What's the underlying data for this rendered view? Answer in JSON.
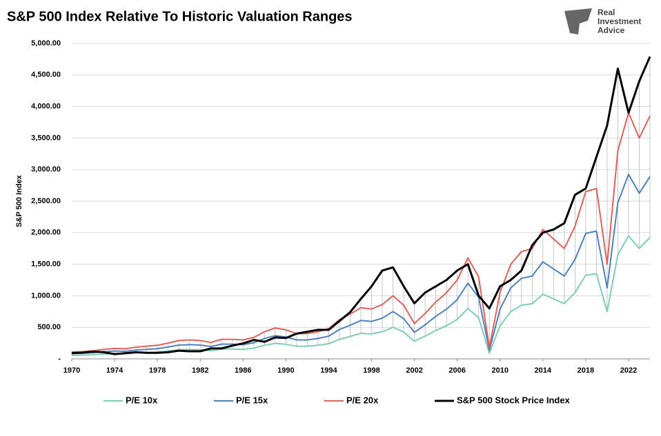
{
  "chart_data": {
    "type": "line",
    "title": "S&P 500 Index Relative To Historic Valuation Ranges",
    "y_label": "S&P 500 Index",
    "logo": [
      "Real",
      "Investment",
      "Advice"
    ],
    "x": [
      1970,
      1971,
      1972,
      1973,
      1974,
      1975,
      1976,
      1977,
      1978,
      1979,
      1980,
      1981,
      1982,
      1983,
      1984,
      1985,
      1986,
      1987,
      1988,
      1989,
      1990,
      1991,
      1992,
      1993,
      1994,
      1995,
      1996,
      1997,
      1998,
      1999,
      2000,
      2001,
      2002,
      2003,
      2004,
      2005,
      2006,
      2007,
      2008,
      2009,
      2010,
      2011,
      2012,
      2013,
      2014,
      2015,
      2016,
      2017,
      2018,
      2019,
      2020,
      2021,
      2022,
      2023,
      2024
    ],
    "series": [
      {
        "name": "P/E 10x",
        "color": "#7fcdb4",
        "width": 2,
        "values": [
          55,
          58,
          65,
          75,
          83,
          80,
          93,
          100,
          108,
          125,
          145,
          150,
          145,
          130,
          155,
          155,
          150,
          170,
          215,
          245,
          230,
          200,
          200,
          215,
          240,
          310,
          355,
          405,
          395,
          430,
          500,
          425,
          280,
          360,
          450,
          525,
          625,
          800,
          650,
          90,
          525,
          750,
          850,
          875,
          1025,
          950,
          875,
          1050,
          1325,
          1350,
          750,
          1650,
          1950,
          1750,
          1925
        ]
      },
      {
        "name": "P/E 15x",
        "color": "#4f81bd",
        "width": 2,
        "values": [
          83,
          86,
          98,
          113,
          124,
          120,
          139,
          150,
          161,
          188,
          218,
          225,
          218,
          195,
          233,
          233,
          225,
          255,
          323,
          368,
          345,
          300,
          300,
          323,
          360,
          465,
          533,
          608,
          593,
          645,
          750,
          638,
          420,
          540,
          675,
          788,
          938,
          1200,
          975,
          135,
          788,
          1125,
          1275,
          1313,
          1538,
          1425,
          1313,
          1575,
          1988,
          2025,
          1125,
          2475,
          2925,
          2625,
          2888
        ]
      },
      {
        "name": "P/E 20x",
        "color": "#e0605a",
        "width": 2,
        "values": [
          110,
          115,
          130,
          150,
          165,
          160,
          185,
          200,
          215,
          250,
          290,
          300,
          290,
          260,
          310,
          310,
          300,
          340,
          430,
          490,
          460,
          400,
          400,
          430,
          480,
          620,
          710,
          810,
          790,
          860,
          1000,
          850,
          560,
          720,
          900,
          1050,
          1250,
          1600,
          1300,
          180,
          1050,
          1500,
          1700,
          1750,
          2050,
          1900,
          1750,
          2100,
          2650,
          2700,
          1500,
          3300,
          3900,
          3500,
          3850
        ]
      },
      {
        "name": "S&P 500 Stock Price Index",
        "color": "#000000",
        "width": 3,
        "values": [
          90,
          100,
          115,
          105,
          75,
          90,
          105,
          95,
          95,
          105,
          130,
          120,
          120,
          165,
          165,
          210,
          245,
          300,
          270,
          340,
          330,
          400,
          430,
          460,
          460,
          600,
          740,
          950,
          1150,
          1400,
          1450,
          1150,
          880,
          1050,
          1150,
          1250,
          1400,
          1500,
          1000,
          800,
          1150,
          1250,
          1400,
          1800,
          2000,
          2050,
          2150,
          2600,
          2700,
          3200,
          3700,
          4600,
          3900,
          4400,
          4790
        ]
      }
    ],
    "xlim": [
      1970,
      2024
    ],
    "xticks": [
      1970,
      1974,
      1978,
      1982,
      1986,
      1990,
      1994,
      1998,
      2002,
      2006,
      2010,
      2014,
      2018,
      2022
    ],
    "ylim": [
      0,
      5000
    ],
    "yticks": [
      {
        "value": 0,
        "label": "-"
      },
      {
        "value": 500,
        "label": "500.00"
      },
      {
        "value": 1000,
        "label": "1,000.00"
      },
      {
        "value": 1500,
        "label": "1,500.00"
      },
      {
        "value": 2000,
        "label": "2,000.00"
      },
      {
        "value": 2500,
        "label": "2,500.00"
      },
      {
        "value": 3000,
        "label": "3,000.00"
      },
      {
        "value": 3500,
        "label": "3,500.00"
      },
      {
        "value": 4000,
        "label": "4,000.00"
      },
      {
        "value": 4500,
        "label": "4,500.00"
      },
      {
        "value": 5000,
        "label": "5,000.00"
      }
    ],
    "grid": true,
    "drop_lines": true,
    "legend": "bottom"
  }
}
